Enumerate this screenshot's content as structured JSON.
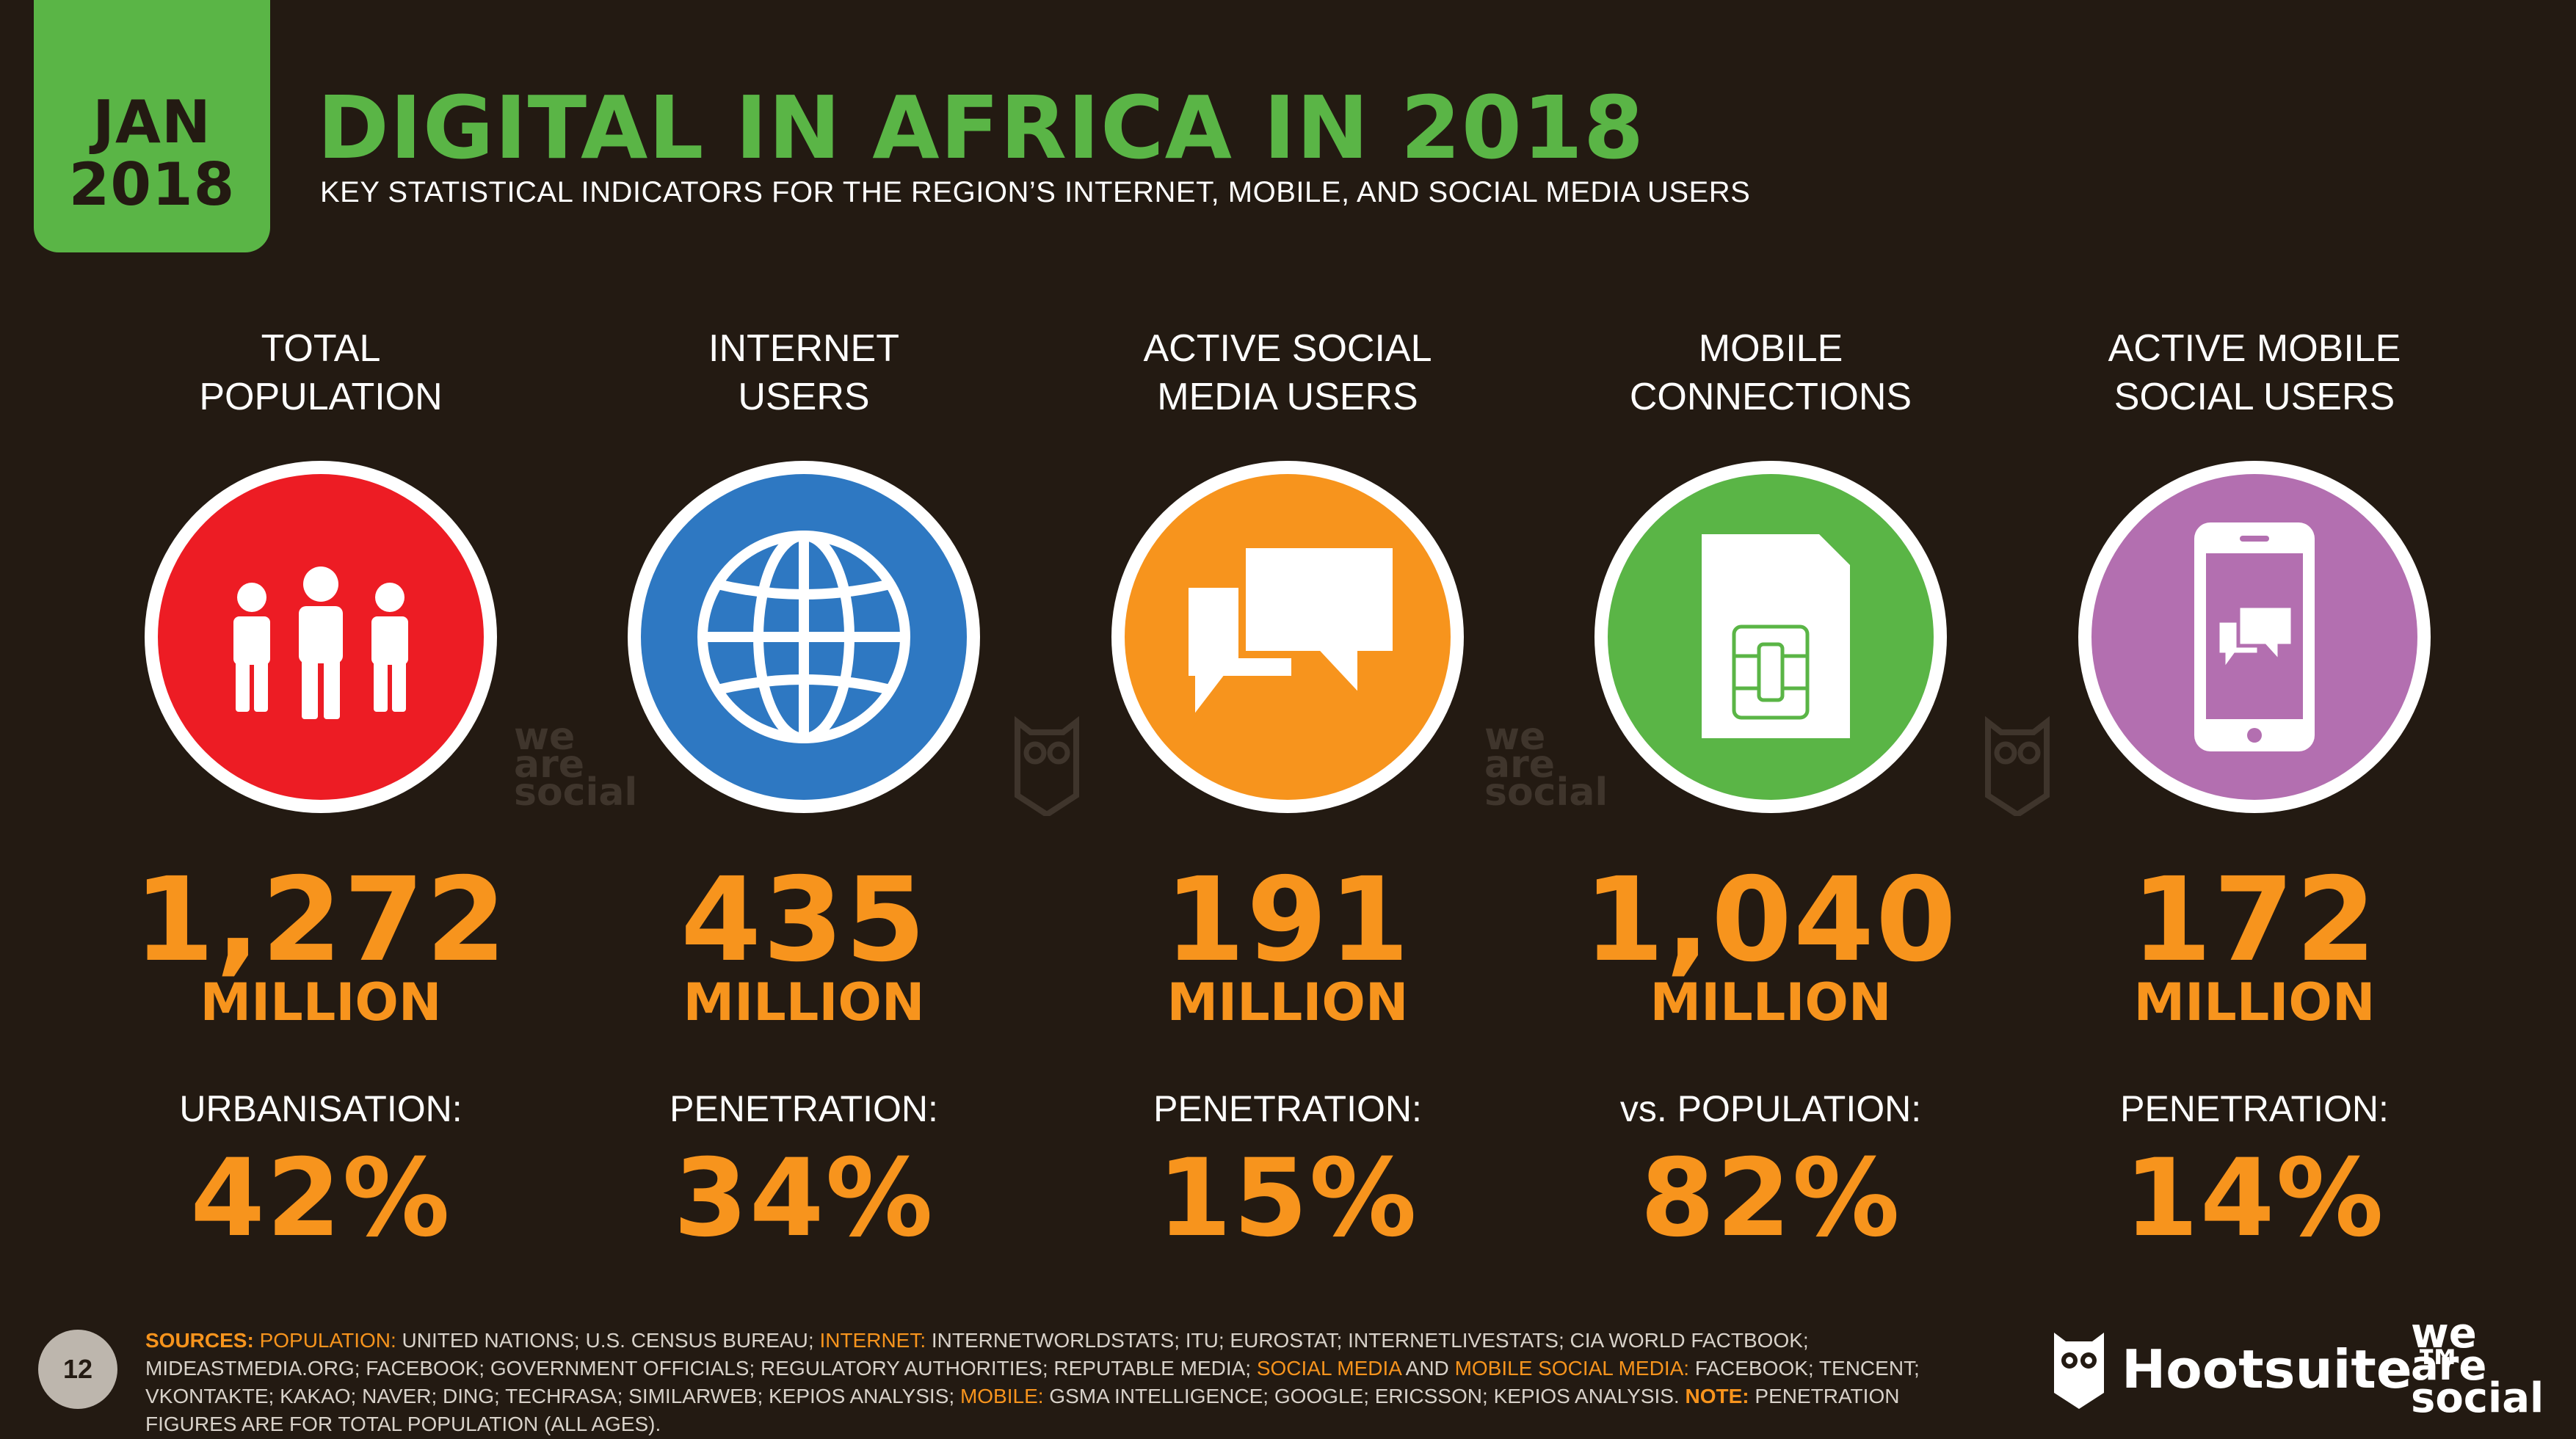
{
  "header": {
    "date_line1": "JAN",
    "date_line2": "2018",
    "title": "DIGITAL IN AFRICA IN 2018",
    "subtitle": "KEY STATISTICAL INDICATORS FOR THE REGION’S INTERNET, MOBILE, AND SOCIAL MEDIA USERS"
  },
  "colors": {
    "background": "#231a12",
    "accent_green": "#5ab546",
    "accent_orange": "#f7941d",
    "population": "#ed1c24",
    "internet": "#2e78c2",
    "social": "#f7941d",
    "mobile": "#5ab546",
    "mobile_social": "#b36fb0"
  },
  "stats": [
    {
      "label": "TOTAL\nPOPULATION",
      "icon": "people-icon",
      "value": "1,272",
      "unit": "MILLION",
      "metric_label": "URBANISATION:",
      "metric_value": "42%"
    },
    {
      "label": "INTERNET\nUSERS",
      "icon": "globe-icon",
      "value": "435",
      "unit": "MILLION",
      "metric_label": "PENETRATION:",
      "metric_value": "34%"
    },
    {
      "label": "ACTIVE SOCIAL\nMEDIA USERS",
      "icon": "chat-bubbles-icon",
      "value": "191",
      "unit": "MILLION",
      "metric_label": "PENETRATION:",
      "metric_value": "15%"
    },
    {
      "label": "MOBILE\nCONNECTIONS",
      "icon": "sim-card-icon",
      "value": "1,040",
      "unit": "MILLION",
      "metric_label": "vs. POPULATION:",
      "metric_value": "82%"
    },
    {
      "label": "ACTIVE MOBILE\nSOCIAL USERS",
      "icon": "mobile-chat-icon",
      "value": "172",
      "unit": "MILLION",
      "metric_label": "PENETRATION:",
      "metric_value": "14%"
    }
  ],
  "watermark": {
    "was": "we\nare\nsocial"
  },
  "footer": {
    "page_number": "12",
    "sources_label": "SOURCES:",
    "s_population_label": "POPULATION:",
    "s_population": " UNITED NATIONS; U.S. CENSUS BUREAU; ",
    "s_internet_label": "INTERNET:",
    "s_internet": " INTERNETWORLDSTATS; ITU; EUROSTAT; INTERNETLIVESTATS; CIA WORLD FACTBOOK; MIDEASTMEDIA.ORG; FACEBOOK; GOVERNMENT OFFICIALS; REGULATORY AUTHORITIES; REPUTABLE MEDIA; ",
    "s_social_label": "SOCIAL MEDIA",
    "s_and": " AND ",
    "s_mobile_social_label": "MOBILE SOCIAL MEDIA:",
    "s_social": " FACEBOOK; TENCENT; VKONTAKTE; KAKAO; NAVER; DING; TECHRASA; SIMILARWEB; KEPIOS ANALYSIS; ",
    "s_mobile_label": "MOBILE:",
    "s_mobile": " GSMA INTELLIGENCE; GOOGLE; ERICSSON; KEPIOS ANALYSIS. ",
    "s_note_label": "NOTE:",
    "s_note": " PENETRATION FIGURES ARE FOR TOTAL POPULATION (ALL AGES).",
    "hootsuite": "Hootsuite™",
    "we_are_social": "we\nare\nsocial"
  }
}
